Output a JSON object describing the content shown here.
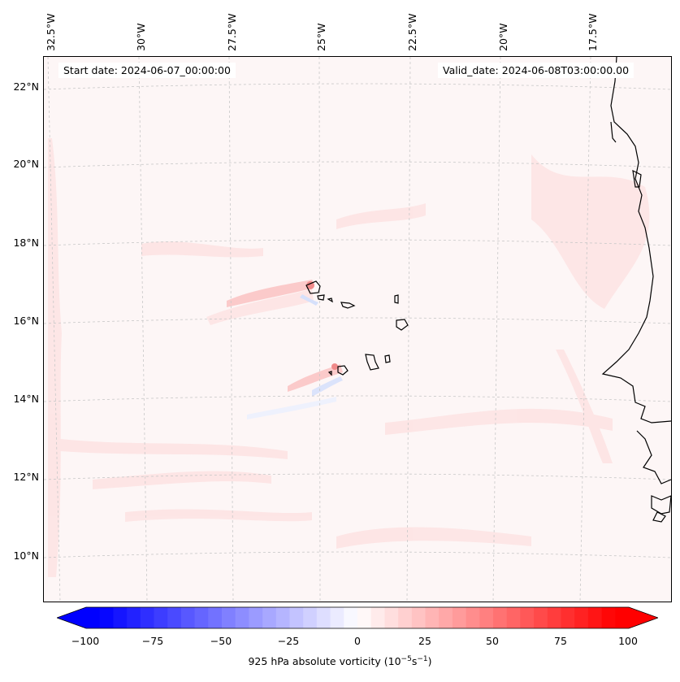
{
  "header": {
    "start_date": "Start date: 2024-06-07_00:00:00",
    "valid_date": "Valid_date: 2024-06-08T03:00:00.00"
  },
  "lon_labels": [
    "32.5°W",
    "30°W",
    "27.5°W",
    "25°W",
    "22.5°W",
    "20°W",
    "17.5°W"
  ],
  "lat_labels": [
    "22°N",
    "20°N",
    "18°N",
    "16°N",
    "14°N",
    "12°N",
    "10°N"
  ],
  "colorbar": {
    "ticks": [
      "−100",
      "−75",
      "−50",
      "−25",
      "0",
      "25",
      "50",
      "75",
      "100"
    ],
    "min": -100,
    "max": 100,
    "label_prefix": "925 hPa absolute vorticity (10",
    "label_exp1": "−5",
    "label_mid": "s",
    "label_exp2": "−1",
    "label_suffix": ")",
    "colors": {
      "negative": "#0000ff",
      "zero": "#ffffff",
      "positive": "#ff0000"
    }
  },
  "map": {
    "grid_color": "#c8c8c8",
    "coastline_color": "#000000",
    "field_base_color": "#fdf6f6"
  }
}
